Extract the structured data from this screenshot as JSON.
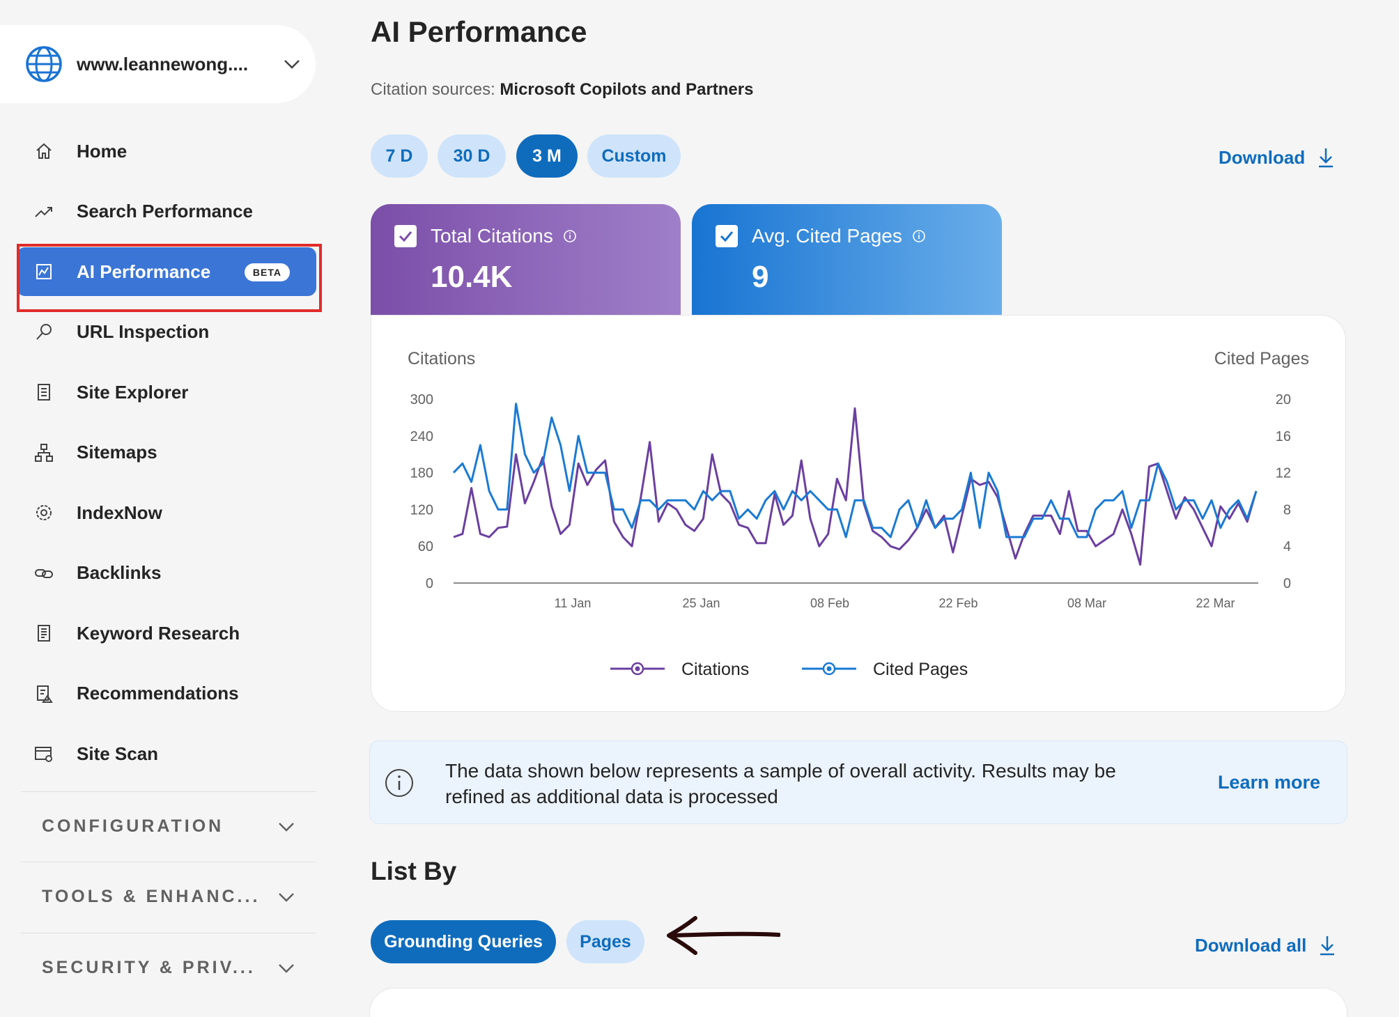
{
  "site": {
    "name": "www.leannewong...."
  },
  "nav": [
    {
      "label": "Home",
      "icon": "home-icon"
    },
    {
      "label": "Search Performance",
      "icon": "trending-icon"
    },
    {
      "label": "AI Performance",
      "icon": "chart-icon",
      "active": true,
      "badge": "BETA"
    },
    {
      "label": "URL Inspection",
      "icon": "search-icon"
    },
    {
      "label": "Site Explorer",
      "icon": "document-icon"
    },
    {
      "label": "Sitemaps",
      "icon": "sitemap-icon"
    },
    {
      "label": "IndexNow",
      "icon": "gear-icon"
    },
    {
      "label": "Backlinks",
      "icon": "link-icon"
    },
    {
      "label": "Keyword Research",
      "icon": "list-icon"
    },
    {
      "label": "Recommendations",
      "icon": "recommend-icon"
    },
    {
      "label": "Site Scan",
      "icon": "scan-icon"
    }
  ],
  "sections": [
    {
      "label": "CONFIGURATION"
    },
    {
      "label": "TOOLS & ENHANC..."
    },
    {
      "label": "SECURITY & PRIV..."
    }
  ],
  "main": {
    "title": "AI Performance",
    "citation_label": "Citation sources:",
    "citation_value": "Microsoft Copilots and Partners",
    "ranges": [
      "7 D",
      "30 D",
      "3 M",
      "Custom"
    ],
    "active_range": "3 M",
    "download_label": "Download",
    "metrics": [
      {
        "label": "Total Citations",
        "value": "10.4K"
      },
      {
        "label": "Avg. Cited Pages",
        "value": "9"
      }
    ],
    "info_text": "The data shown below represents a sample of overall activity. Results may be refined as additional data is processed",
    "learn_more": "Learn more",
    "list_by_title": "List By",
    "list_tabs": [
      "Grounding Queries",
      "Pages"
    ],
    "active_list_tab": "Grounding Queries",
    "download_all": "Download all"
  },
  "colors": {
    "citations": "#6b3fa0",
    "cited_pages": "#1a7ad4",
    "accent": "#0f6cbd",
    "active_nav": "#3b75d6"
  },
  "chart_data": {
    "type": "line",
    "ylabel_left": "Citations",
    "ylabel_right": "Cited Pages",
    "y_left_ticks": [
      "300",
      "240",
      "180",
      "120",
      "60",
      "0"
    ],
    "y_right_ticks": [
      "20",
      "16",
      "12",
      "8",
      "4",
      "0"
    ],
    "ylim_left": [
      0,
      300
    ],
    "ylim_right": [
      0,
      20
    ],
    "x_tick_labels": [
      "11 Jan",
      "25 Jan",
      "08 Feb",
      "22 Feb",
      "08 Mar",
      "22 Mar"
    ],
    "legend": [
      "Citations",
      "Cited Pages"
    ],
    "legend_position": "bottom",
    "grid": false,
    "series": [
      {
        "name": "Citations",
        "axis": "left",
        "values": [
          75,
          80,
          155,
          80,
          75,
          90,
          92,
          210,
          130,
          165,
          205,
          125,
          80,
          95,
          195,
          160,
          185,
          200,
          100,
          75,
          60,
          140,
          230,
          100,
          130,
          120,
          95,
          85,
          105,
          210,
          145,
          130,
          95,
          90,
          65,
          65,
          145,
          95,
          110,
          200,
          105,
          60,
          80,
          170,
          135,
          285,
          130,
          85,
          75,
          60,
          55,
          70,
          90,
          120,
          90,
          110,
          50,
          110,
          170,
          160,
          165,
          140,
          90,
          40,
          80,
          110,
          110,
          110,
          80,
          150,
          85,
          85,
          60,
          70,
          80,
          120,
          80,
          30,
          190,
          195,
          150,
          105,
          140,
          120,
          90,
          60,
          125,
          105,
          130,
          100,
          150
        ]
      },
      {
        "name": "Cited Pages",
        "axis": "right",
        "values": [
          12,
          13,
          11,
          15,
          10,
          8,
          8,
          19.5,
          14,
          12,
          13,
          18,
          15,
          10,
          16,
          12,
          12,
          12,
          8,
          8,
          6,
          9,
          9,
          8,
          9,
          9,
          9,
          8,
          10,
          9,
          10,
          10,
          7,
          8,
          7,
          9,
          10,
          8,
          10,
          9,
          10,
          9,
          8,
          8,
          5,
          9,
          9,
          6,
          6,
          5,
          8,
          9,
          6,
          9,
          6,
          7,
          7,
          8,
          12,
          6,
          12,
          10,
          5,
          5,
          5,
          7,
          7,
          9,
          7,
          7,
          5,
          5,
          8,
          9,
          9,
          10,
          6,
          9,
          9,
          13,
          11,
          8,
          9,
          9,
          7,
          9,
          6,
          8,
          9,
          7,
          10
        ]
      }
    ]
  }
}
